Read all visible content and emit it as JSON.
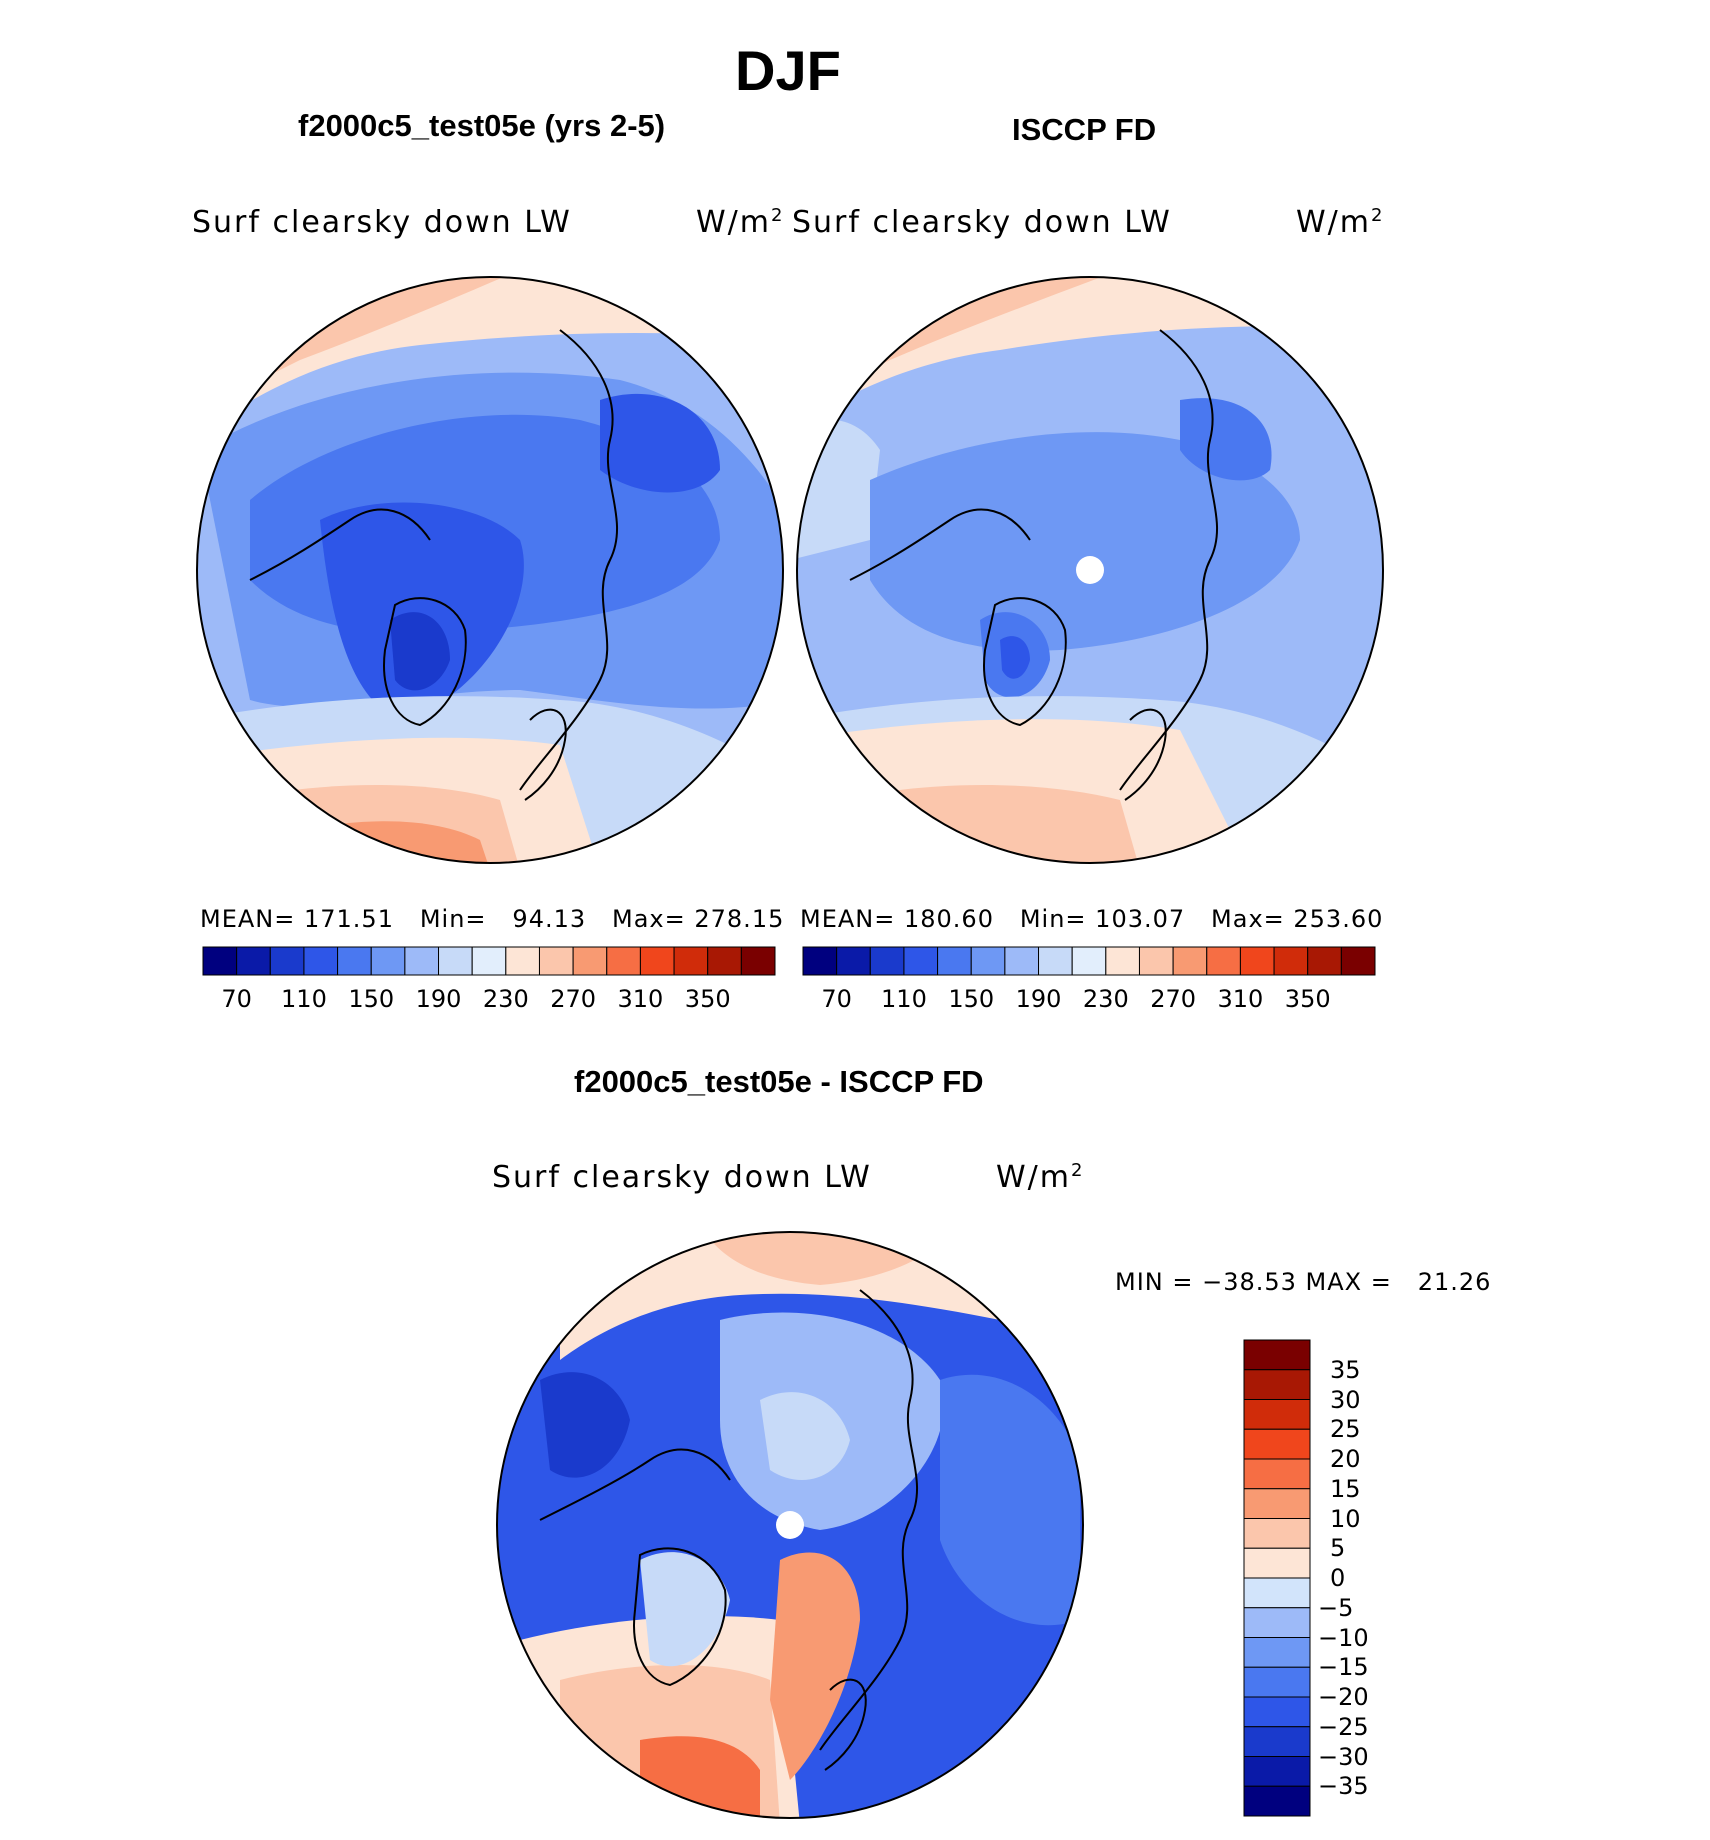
{
  "figure": {
    "season_title": "DJF",
    "top_left": {
      "title": "f2000c5_test05e (yrs 2-5)",
      "variable": "Surf clearsky down LW",
      "units_base": "W/m",
      "units_exp": "2",
      "stats": "MEAN= 171.51   Min=   94.13   Max= 278.15"
    },
    "top_right": {
      "title": "ISCCP FD",
      "variable": "Surf clearsky down LW",
      "units_base": "W/m",
      "units_exp": "2",
      "stats": "MEAN= 180.60   Min= 103.07   Max= 253.60"
    },
    "bottom": {
      "title": "f2000c5_test05e - ISCCP FD",
      "variable": "Surf clearsky down LW",
      "units_base": "W/m",
      "units_exp": "2",
      "stats": "MIN = −38.53 MAX =   21.26"
    }
  },
  "colors": {
    "abs_scale": [
      "#00007f",
      "#0a1aa8",
      "#1a3acc",
      "#2e56e8",
      "#4a78f0",
      "#6e98f4",
      "#9dbaf8",
      "#c7daf8",
      "#e2eefc",
      "#fde5d6",
      "#fbc6ac",
      "#f89a72",
      "#f66e44",
      "#f0461c",
      "#d02c0a",
      "#a81804",
      "#7a0000"
    ],
    "diff_scale": [
      "#00007f",
      "#0a1aa8",
      "#1a3acc",
      "#2e56e8",
      "#4a78f0",
      "#6e98f4",
      "#9dbaf8",
      "#d2e4fb",
      "#fde5d6",
      "#fbc6ac",
      "#f89a72",
      "#f66e44",
      "#f0461c",
      "#d02c0a",
      "#a81804",
      "#7a0000"
    ]
  },
  "chart_data": [
    {
      "type": "heatmap",
      "title": "f2000c5_test05e (yrs 2-5)",
      "variable": "Surf clearsky down LW",
      "units": "W/m2",
      "projection": "polar stereographic (North Pole)",
      "mean": 171.51,
      "min": 94.13,
      "max": 278.15,
      "contour_levels": [
        70,
        90,
        110,
        130,
        150,
        170,
        190,
        210,
        230,
        250,
        270,
        290,
        310,
        330,
        350
      ],
      "colorbar_tick_labels": [
        "70",
        "110",
        "150",
        "190",
        "230",
        "270",
        "310",
        "350"
      ]
    },
    {
      "type": "heatmap",
      "title": "ISCCP FD",
      "variable": "Surf clearsky down LW",
      "units": "W/m2",
      "projection": "polar stereographic (North Pole)",
      "mean": 180.6,
      "min": 103.07,
      "max": 253.6,
      "contour_levels": [
        70,
        90,
        110,
        130,
        150,
        170,
        190,
        210,
        230,
        250,
        270,
        290,
        310,
        330,
        350
      ],
      "colorbar_tick_labels": [
        "70",
        "110",
        "150",
        "190",
        "230",
        "270",
        "310",
        "350"
      ]
    },
    {
      "type": "heatmap",
      "title": "f2000c5_test05e - ISCCP FD",
      "variable": "Surf clearsky down LW",
      "units": "W/m2",
      "projection": "polar stereographic (North Pole)",
      "min": -38.53,
      "max": 21.26,
      "contour_levels": [
        -35,
        -30,
        -25,
        -20,
        -15,
        -10,
        -5,
        0,
        5,
        10,
        15,
        20,
        25,
        30,
        35
      ],
      "colorbar_tick_labels": [
        "35",
        "30",
        "25",
        "20",
        "15",
        "10",
        "5",
        "0",
        "−5",
        "−10",
        "−15",
        "−20",
        "−25",
        "−30",
        "−35"
      ]
    }
  ]
}
